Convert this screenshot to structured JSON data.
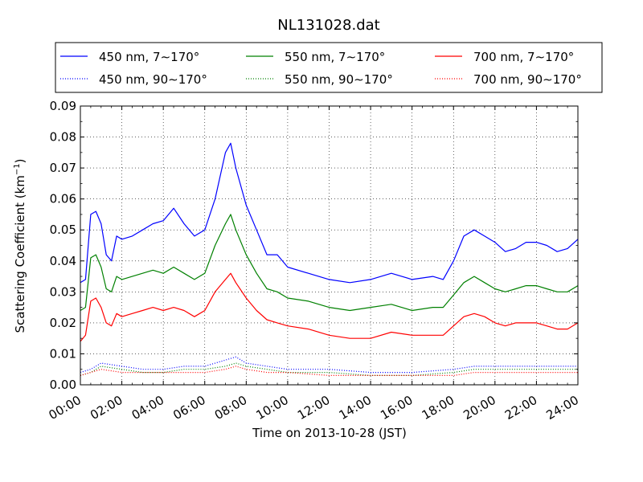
{
  "chart_data": {
    "type": "line",
    "title": "NL131028.dat",
    "xlabel": "Time on 2013-10-28 (JST)",
    "ylabel_main": "Scattering Coefficient (km",
    "ylabel_sup": "−1",
    "ylabel_close": ")",
    "xlim": [
      "00:00",
      "24:00"
    ],
    "ylim": [
      0,
      0.09
    ],
    "xticks": [
      "00:00",
      "02:00",
      "04:00",
      "06:00",
      "08:00",
      "10:00",
      "12:00",
      "14:00",
      "16:00",
      "18:00",
      "20:00",
      "22:00",
      "24:00"
    ],
    "yticks": [
      "0.00",
      "0.01",
      "0.02",
      "0.03",
      "0.04",
      "0.05",
      "0.06",
      "0.07",
      "0.08",
      "0.09"
    ],
    "grid": true,
    "legend_placement": "top (above plot), 3 columns",
    "series": [
      {
        "name": "450 nm, 7∼170°",
        "color": "#0000ff",
        "style": "solid",
        "x": [
          0,
          0.25,
          0.5,
          0.75,
          1,
          1.25,
          1.5,
          1.75,
          2,
          2.5,
          3,
          3.5,
          4,
          4.5,
          5,
          5.5,
          6,
          6.5,
          7,
          7.25,
          7.5,
          8,
          8.5,
          9,
          9.5,
          10,
          11,
          12,
          13,
          14,
          15,
          16,
          17,
          17.5,
          18,
          18.5,
          19,
          19.5,
          20,
          20.5,
          21,
          21.5,
          22,
          22.5,
          23,
          23.5,
          24
        ],
        "y": [
          0.033,
          0.034,
          0.055,
          0.056,
          0.052,
          0.042,
          0.04,
          0.048,
          0.047,
          0.048,
          0.05,
          0.052,
          0.053,
          0.057,
          0.052,
          0.048,
          0.05,
          0.06,
          0.075,
          0.078,
          0.07,
          0.058,
          0.05,
          0.042,
          0.042,
          0.038,
          0.036,
          0.034,
          0.033,
          0.034,
          0.036,
          0.034,
          0.035,
          0.034,
          0.04,
          0.048,
          0.05,
          0.048,
          0.046,
          0.043,
          0.044,
          0.046,
          0.046,
          0.045,
          0.043,
          0.044,
          0.047
        ]
      },
      {
        "name": "450 nm, 90∼170°",
        "color": "#0000ff",
        "style": "dotted",
        "x": [
          0,
          0.5,
          1,
          2,
          3,
          4,
          5,
          6,
          7,
          7.5,
          8,
          9,
          10,
          12,
          14,
          16,
          18,
          19,
          20,
          22,
          24
        ],
        "y": [
          0.004,
          0.005,
          0.007,
          0.006,
          0.005,
          0.005,
          0.006,
          0.006,
          0.008,
          0.009,
          0.007,
          0.006,
          0.005,
          0.005,
          0.004,
          0.004,
          0.005,
          0.006,
          0.006,
          0.006,
          0.006
        ]
      },
      {
        "name": "550 nm, 7∼170°",
        "color": "#008000",
        "style": "solid",
        "x": [
          0,
          0.25,
          0.5,
          0.75,
          1,
          1.25,
          1.5,
          1.75,
          2,
          2.5,
          3,
          3.5,
          4,
          4.5,
          5,
          5.5,
          6,
          6.5,
          7,
          7.25,
          7.5,
          8,
          8.5,
          9,
          9.5,
          10,
          11,
          12,
          13,
          14,
          15,
          16,
          17,
          17.5,
          18,
          18.5,
          19,
          19.5,
          20,
          20.5,
          21,
          21.5,
          22,
          22.5,
          23,
          23.5,
          24
        ],
        "y": [
          0.024,
          0.025,
          0.041,
          0.042,
          0.038,
          0.031,
          0.03,
          0.035,
          0.034,
          0.035,
          0.036,
          0.037,
          0.036,
          0.038,
          0.036,
          0.034,
          0.036,
          0.045,
          0.052,
          0.055,
          0.05,
          0.042,
          0.036,
          0.031,
          0.03,
          0.028,
          0.027,
          0.025,
          0.024,
          0.025,
          0.026,
          0.024,
          0.025,
          0.025,
          0.029,
          0.033,
          0.035,
          0.033,
          0.031,
          0.03,
          0.031,
          0.032,
          0.032,
          0.031,
          0.03,
          0.03,
          0.032
        ]
      },
      {
        "name": "550 nm, 90∼170°",
        "color": "#008000",
        "style": "dotted",
        "x": [
          0,
          0.5,
          1,
          2,
          3,
          4,
          5,
          6,
          7,
          7.5,
          8,
          9,
          10,
          12,
          14,
          16,
          18,
          19,
          20,
          22,
          24
        ],
        "y": [
          0.003,
          0.004,
          0.006,
          0.005,
          0.004,
          0.004,
          0.005,
          0.005,
          0.006,
          0.007,
          0.006,
          0.005,
          0.004,
          0.004,
          0.003,
          0.003,
          0.004,
          0.005,
          0.005,
          0.005,
          0.005
        ]
      },
      {
        "name": "700 nm, 7∼170°",
        "color": "#ff0000",
        "style": "solid",
        "x": [
          0,
          0.25,
          0.5,
          0.75,
          1,
          1.25,
          1.5,
          1.75,
          2,
          2.5,
          3,
          3.5,
          4,
          4.5,
          5,
          5.5,
          6,
          6.5,
          7,
          7.25,
          7.5,
          8,
          8.5,
          9,
          9.5,
          10,
          11,
          12,
          13,
          14,
          15,
          16,
          17,
          17.5,
          18,
          18.5,
          19,
          19.5,
          20,
          20.5,
          21,
          21.5,
          22,
          22.5,
          23,
          23.5,
          24
        ],
        "y": [
          0.014,
          0.016,
          0.027,
          0.028,
          0.025,
          0.02,
          0.019,
          0.023,
          0.022,
          0.023,
          0.024,
          0.025,
          0.024,
          0.025,
          0.024,
          0.022,
          0.024,
          0.03,
          0.034,
          0.036,
          0.033,
          0.028,
          0.024,
          0.021,
          0.02,
          0.019,
          0.018,
          0.016,
          0.015,
          0.015,
          0.017,
          0.016,
          0.016,
          0.016,
          0.019,
          0.022,
          0.023,
          0.022,
          0.02,
          0.019,
          0.02,
          0.02,
          0.02,
          0.019,
          0.018,
          0.018,
          0.02
        ]
      },
      {
        "name": "700 nm, 90∼170°",
        "color": "#ff0000",
        "style": "dotted",
        "x": [
          0,
          0.5,
          1,
          2,
          3,
          4,
          5,
          6,
          7,
          7.5,
          8,
          9,
          10,
          12,
          14,
          16,
          18,
          19,
          20,
          22,
          24
        ],
        "y": [
          0.003,
          0.004,
          0.005,
          0.004,
          0.004,
          0.004,
          0.004,
          0.004,
          0.005,
          0.006,
          0.005,
          0.004,
          0.004,
          0.003,
          0.003,
          0.003,
          0.003,
          0.004,
          0.004,
          0.004,
          0.004
        ]
      }
    ]
  }
}
